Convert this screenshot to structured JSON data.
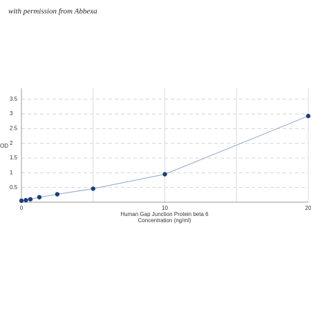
{
  "watermark": "with permission from Abbexa",
  "chart_data": {
    "type": "line",
    "xlabel": [
      "Human Gap Junction Protein beta 6",
      "Concentration (ng/ml)"
    ],
    "ylabel": "OD",
    "x": [
      0,
      0.3125,
      0.625,
      1.25,
      2.5,
      5,
      10,
      20
    ],
    "series": [
      {
        "color": "#1e3f78",
        "line_color": "#8aa6cc",
        "values": [
          0.05,
          0.07,
          0.1,
          0.17,
          0.27,
          0.46,
          0.95,
          2.93
        ]
      }
    ],
    "xlim": [
      0,
      20
    ],
    "xticks": [
      0,
      10,
      20
    ],
    "x_minor_grid": [
      5,
      15
    ],
    "ylim": [
      0,
      3.87
    ],
    "yticks": [
      0.5,
      1,
      1.5,
      2,
      2.5,
      3,
      3.5
    ],
    "grid": true
  }
}
